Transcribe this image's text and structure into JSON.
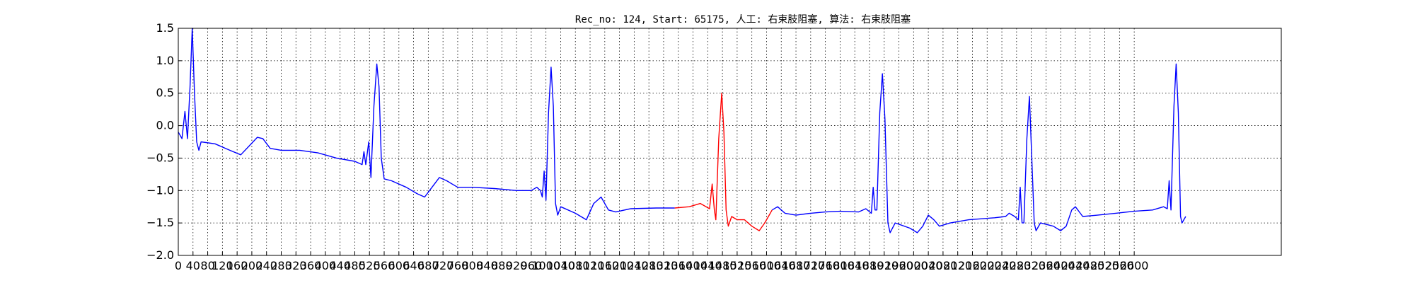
{
  "chart_data": {
    "type": "line",
    "title": "Rec_no: 124, Start: 65175, 人工: 右束肢阻塞, 算法: 右束肢阻塞",
    "xlabel": "",
    "ylabel": "",
    "xlim": [
      0,
      3000
    ],
    "ylim": [
      -2.0,
      1.5
    ],
    "grid": true,
    "yticks": [
      1.5,
      1.0,
      0.5,
      0.0,
      -0.5,
      -1.0,
      -1.5,
      -2.0
    ],
    "ytick_labels": [
      "1.5",
      "1.0",
      "0.5",
      "0.0",
      "−0.5",
      "−1.0",
      "−1.5",
      "−2.0"
    ],
    "xticks": [
      0,
      40,
      80,
      120,
      160,
      200,
      240,
      280,
      320,
      360,
      400,
      440,
      480,
      520,
      560,
      600,
      640,
      680,
      720,
      760,
      800,
      840,
      880,
      920,
      960,
      1000,
      1040,
      1080,
      1120,
      1160,
      1200,
      1240,
      1280,
      1320,
      1360,
      1400,
      1440,
      1480,
      1520,
      1560,
      1600,
      1640,
      1680,
      1720,
      1760,
      1800,
      1840,
      1880,
      1920,
      1960,
      2000,
      2040,
      2080,
      2120,
      2160,
      2200,
      2240,
      2280,
      2320,
      2360,
      2400,
      2440,
      2480,
      2520,
      2560,
      2600
    ],
    "xtick_labels": [
      "0",
      "40",
      "80",
      "120",
      "160",
      "200",
      "240",
      "280",
      "320",
      "360",
      "400",
      "440",
      "480",
      "520",
      "560",
      "600",
      "640",
      "680",
      "720",
      "760",
      "800",
      "840",
      "880",
      "920",
      "960",
      "1000",
      "1040",
      "1080",
      "1120",
      "1160",
      "1200",
      "1240",
      "1280",
      "1320",
      "1360",
      "1400",
      "1440",
      "1480",
      "1520",
      "1560",
      "1600",
      "1640",
      "1680",
      "1720",
      "1760",
      "1800",
      "1840",
      "1880",
      "1920",
      "1960",
      "2000",
      "2040",
      "2080",
      "2120",
      "2160",
      "2200",
      "2240",
      "2280",
      "2320",
      "2360",
      "2400",
      "2440",
      "2480",
      "2520",
      "2560",
      "2600"
    ],
    "series": [
      {
        "color": "#0000ff",
        "points": [
          [
            0,
            -0.1
          ],
          [
            10,
            -0.2
          ],
          [
            18,
            0.22
          ],
          [
            25,
            -0.2
          ],
          [
            32,
            0.6
          ],
          [
            38,
            1.5
          ],
          [
            44,
            0.5
          ],
          [
            50,
            -0.25
          ],
          [
            56,
            -0.38
          ],
          [
            62,
            -0.25
          ],
          [
            100,
            -0.28
          ],
          [
            140,
            -0.38
          ],
          [
            170,
            -0.45
          ],
          [
            195,
            -0.3
          ],
          [
            215,
            -0.18
          ],
          [
            230,
            -0.2
          ],
          [
            250,
            -0.35
          ],
          [
            280,
            -0.38
          ],
          [
            330,
            -0.38
          ],
          [
            380,
            -0.42
          ],
          [
            430,
            -0.5
          ],
          [
            480,
            -0.55
          ],
          [
            500,
            -0.6
          ],
          [
            505,
            -0.4
          ],
          [
            510,
            -0.6
          ],
          [
            518,
            -0.25
          ],
          [
            524,
            -0.8
          ],
          [
            532,
            0.3
          ],
          [
            540,
            0.95
          ],
          [
            546,
            0.6
          ],
          [
            552,
            -0.5
          ],
          [
            560,
            -0.82
          ],
          [
            580,
            -0.85
          ],
          [
            620,
            -0.95
          ],
          [
            650,
            -1.05
          ],
          [
            670,
            -1.1
          ],
          [
            690,
            -0.95
          ],
          [
            710,
            -0.8
          ],
          [
            730,
            -0.85
          ],
          [
            760,
            -0.95
          ],
          [
            800,
            -0.95
          ],
          [
            860,
            -0.97
          ],
          [
            920,
            -1.0
          ],
          [
            960,
            -1.0
          ],
          [
            975,
            -0.95
          ],
          [
            985,
            -1.0
          ],
          [
            990,
            -1.1
          ],
          [
            995,
            -0.7
          ],
          [
            1000,
            -1.15
          ],
          [
            1007,
            0.2
          ],
          [
            1014,
            0.9
          ],
          [
            1020,
            0.3
          ],
          [
            1026,
            -1.2
          ],
          [
            1032,
            -1.38
          ],
          [
            1040,
            -1.25
          ],
          [
            1080,
            -1.35
          ],
          [
            1110,
            -1.45
          ],
          [
            1130,
            -1.2
          ],
          [
            1150,
            -1.1
          ],
          [
            1170,
            -1.3
          ],
          [
            1190,
            -1.33
          ],
          [
            1230,
            -1.28
          ],
          [
            1300,
            -1.27
          ],
          [
            1350,
            -1.27
          ]
        ]
      },
      {
        "color": "#ff0000",
        "points": [
          [
            1350,
            -1.27
          ],
          [
            1390,
            -1.25
          ],
          [
            1420,
            -1.2
          ],
          [
            1445,
            -1.28
          ],
          [
            1452,
            -0.9
          ],
          [
            1458,
            -1.3
          ],
          [
            1462,
            -1.45
          ],
          [
            1470,
            -0.2
          ],
          [
            1478,
            0.5
          ],
          [
            1484,
            -0.1
          ],
          [
            1490,
            -1.3
          ],
          [
            1496,
            -1.55
          ],
          [
            1505,
            -1.4
          ],
          [
            1520,
            -1.45
          ],
          [
            1540,
            -1.45
          ],
          [
            1560,
            -1.55
          ],
          [
            1580,
            -1.62
          ],
          [
            1595,
            -1.5
          ],
          [
            1605,
            -1.4
          ],
          [
            1615,
            -1.3
          ]
        ]
      },
      {
        "color": "#0000ff",
        "points": [
          [
            1615,
            -1.3
          ],
          [
            1630,
            -1.25
          ],
          [
            1650,
            -1.35
          ],
          [
            1680,
            -1.38
          ],
          [
            1720,
            -1.35
          ],
          [
            1760,
            -1.33
          ],
          [
            1800,
            -1.32
          ],
          [
            1850,
            -1.33
          ],
          [
            1870,
            -1.28
          ],
          [
            1885,
            -1.35
          ],
          [
            1890,
            -0.95
          ],
          [
            1895,
            -1.3
          ],
          [
            1900,
            -1.3
          ],
          [
            1908,
            0.2
          ],
          [
            1915,
            0.8
          ],
          [
            1922,
            0.1
          ],
          [
            1930,
            -1.5
          ],
          [
            1936,
            -1.65
          ],
          [
            1950,
            -1.5
          ],
          [
            1990,
            -1.58
          ],
          [
            2010,
            -1.65
          ],
          [
            2025,
            -1.55
          ],
          [
            2040,
            -1.38
          ],
          [
            2055,
            -1.45
          ],
          [
            2070,
            -1.55
          ],
          [
            2100,
            -1.5
          ],
          [
            2150,
            -1.45
          ],
          [
            2220,
            -1.42
          ],
          [
            2250,
            -1.4
          ],
          [
            2260,
            -1.35
          ],
          [
            2275,
            -1.4
          ],
          [
            2285,
            -1.45
          ],
          [
            2290,
            -0.95
          ],
          [
            2295,
            -1.5
          ],
          [
            2300,
            -1.5
          ],
          [
            2308,
            -0.2
          ],
          [
            2315,
            0.45
          ],
          [
            2322,
            -0.6
          ],
          [
            2328,
            -1.5
          ],
          [
            2333,
            -1.62
          ],
          [
            2345,
            -1.5
          ],
          [
            2380,
            -1.55
          ],
          [
            2400,
            -1.62
          ],
          [
            2415,
            -1.55
          ],
          [
            2430,
            -1.3
          ],
          [
            2440,
            -1.25
          ],
          [
            2460,
            -1.4
          ],
          [
            2500,
            -1.38
          ],
          [
            2550,
            -1.35
          ],
          [
            2600,
            -1.32
          ],
          [
            2650,
            -1.3
          ],
          [
            2680,
            -1.25
          ],
          [
            2690,
            -1.28
          ],
          [
            2695,
            -0.85
          ],
          [
            2700,
            -1.3
          ],
          [
            2708,
            0.3
          ],
          [
            2714,
            0.95
          ],
          [
            2720,
            0.2
          ],
          [
            2726,
            -1.4
          ],
          [
            2730,
            -1.5
          ],
          [
            2740,
            -1.4
          ]
        ]
      }
    ]
  }
}
